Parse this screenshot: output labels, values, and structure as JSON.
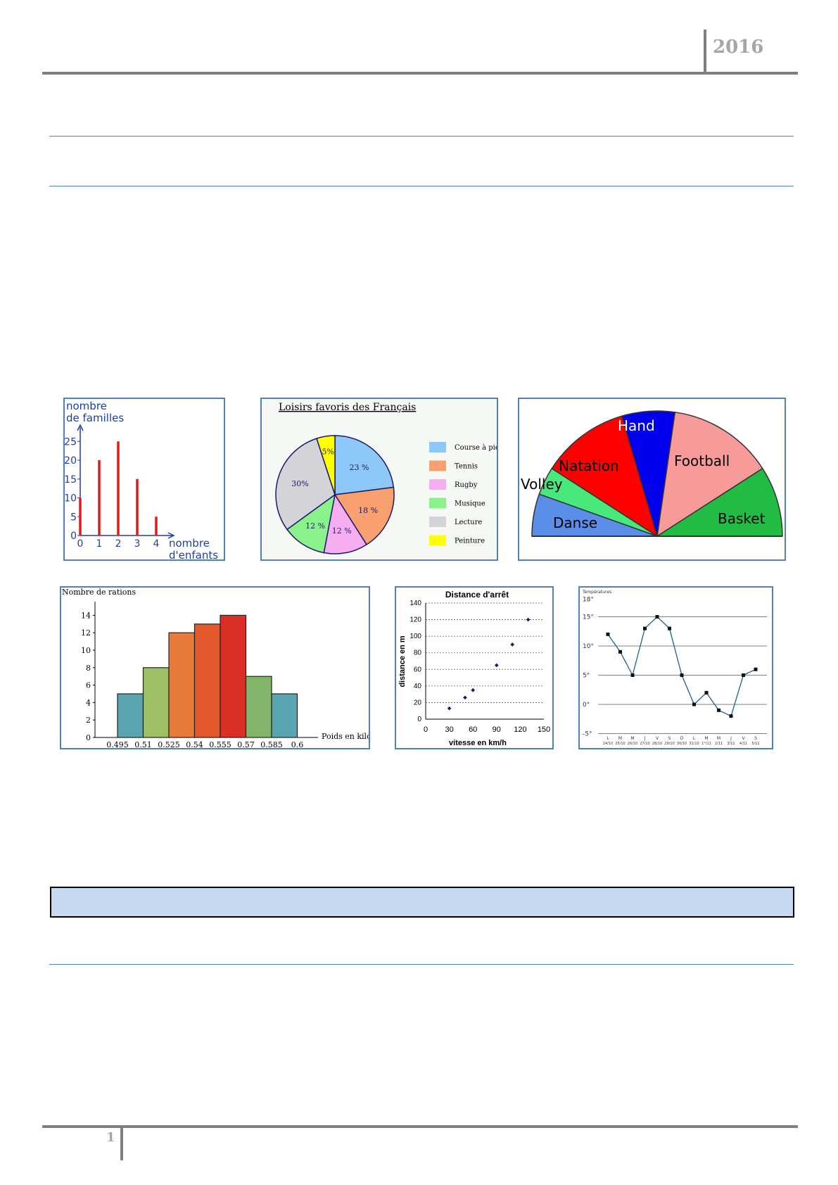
{
  "header": {
    "year": "2016"
  },
  "footer": {
    "page_number": "1"
  },
  "colors": {
    "rule_gray": "#7f7f7f",
    "rule_blue": "#4f81bd",
    "banner_fill": "#c6d9f1",
    "year_gray": "#a6a6a6"
  },
  "chart_data": [
    {
      "type": "bar",
      "ylabel": "nombre\nde familles",
      "ylabel_lines": [
        "nombre",
        "de familles"
      ],
      "xlabel_lines": [
        "nombre",
        "d'enfants"
      ],
      "categories": [
        "0",
        "1",
        "2",
        "3",
        "4"
      ],
      "values": [
        10,
        20,
        25,
        15,
        5
      ],
      "y_ticks": [
        "0",
        "5",
        "10",
        "15",
        "20",
        "25"
      ],
      "ylim": [
        0,
        25
      ],
      "color": "#e31a1c"
    },
    {
      "type": "pie",
      "title": "Loisirs  favoris  des  Français",
      "slices": [
        {
          "label": "Course à pied",
          "value": 23,
          "text": "23 %",
          "color": "#8ec8f8"
        },
        {
          "label": "Tennis",
          "value": 18,
          "text": "18 %",
          "color": "#f9a070"
        },
        {
          "label": "Rugby",
          "value": 12,
          "text": "12 %",
          "color": "#f7aef0"
        },
        {
          "label": "Musique",
          "value": 12,
          "text": "12 %",
          "color": "#8af28a"
        },
        {
          "label": "Lecture",
          "value": 30,
          "text": "30%",
          "color": "#d3d3d8"
        },
        {
          "label": "Peinture",
          "value": 5,
          "text": "5%",
          "color": "#ffff00"
        }
      ]
    },
    {
      "type": "pie",
      "variant": "semicircle",
      "slices": [
        {
          "label": "Danse",
          "value": 12,
          "color": "#5b8ee8"
        },
        {
          "label": "Volley",
          "value": 8,
          "color": "#48e87a"
        },
        {
          "label": "Natation",
          "value": 25,
          "color": "#ff0000"
        },
        {
          "label": "Hand",
          "value": 15,
          "color": "#0000ee"
        },
        {
          "label": "Football",
          "value": 30,
          "color": "#f79a9a"
        },
        {
          "label": "Basket",
          "value": 20,
          "color": "#22bb44"
        }
      ]
    },
    {
      "type": "bar",
      "variant": "histogram",
      "ylabel": "Nombre de rations",
      "xlabel": "Poids en kilos",
      "bin_edges": [
        "0.495",
        "0.51",
        "0.525",
        "0.54",
        "0.555",
        "0.57",
        "0.585",
        "0.6"
      ],
      "values": [
        5,
        8,
        12,
        13,
        14,
        7,
        5
      ],
      "bar_colors": [
        "#5aa6b0",
        "#9cc063",
        "#e87a3a",
        "#e4582e",
        "#d92f27",
        "#82b56a",
        "#5aa6b0"
      ],
      "y_ticks": [
        "0",
        "2",
        "4",
        "6",
        "8",
        "10",
        "12",
        "14"
      ],
      "ylim": [
        0,
        14
      ]
    },
    {
      "type": "scatter",
      "title": "Distance d'arrêt",
      "xlabel": "vitesse en km/h",
      "ylabel": "distance en m",
      "x": [
        30,
        50,
        60,
        90,
        110,
        130
      ],
      "y": [
        13,
        26,
        35,
        65,
        90,
        120
      ],
      "x_ticks": [
        "0",
        "30",
        "60",
        "90",
        "120",
        "150"
      ],
      "y_ticks": [
        "0",
        "20",
        "40",
        "60",
        "80",
        "100",
        "120",
        "140"
      ],
      "xlim": [
        0,
        150
      ],
      "ylim": [
        0,
        140
      ],
      "grid": true
    },
    {
      "type": "line",
      "ylabel": "Températures",
      "x_days": [
        "L",
        "M",
        "M",
        "J",
        "V",
        "S",
        "D",
        "L",
        "M",
        "M",
        "J",
        "V",
        "S"
      ],
      "x_dates": [
        "24/10",
        "25/10",
        "26/10",
        "27/10",
        "28/10",
        "29/10",
        "30/10",
        "31/10",
        "1°/11",
        "2/11",
        "3/11",
        "4/11",
        "5/11"
      ],
      "values": [
        12,
        9,
        5,
        13,
        15,
        13,
        5,
        0,
        2,
        -1,
        -2,
        5,
        6
      ],
      "y_ticks": [
        "-5°",
        "0°",
        "5°",
        "10°",
        "15°",
        "18°"
      ],
      "ylim": [
        -5,
        18
      ],
      "grid": true,
      "color": "#1f5e8c"
    }
  ]
}
